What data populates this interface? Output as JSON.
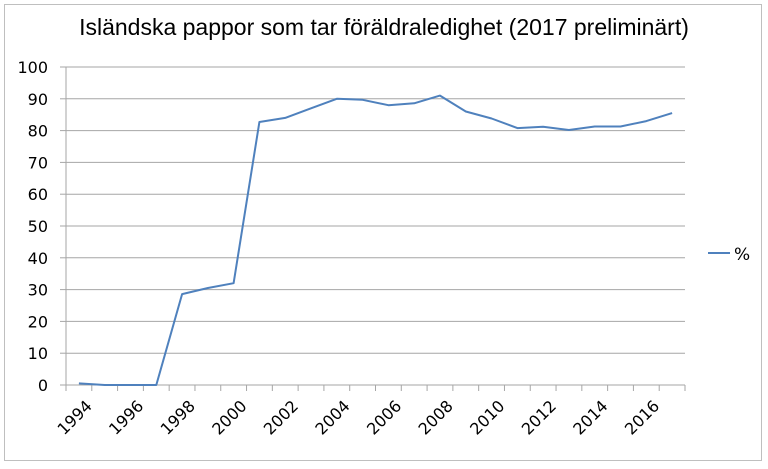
{
  "chart_data": {
    "type": "line",
    "title": "Isländska pappor som tar föräldraledighet (2017 preliminärt)",
    "xlabel": "",
    "ylabel": "",
    "ylim": [
      0,
      100
    ],
    "yticks": [
      0,
      10,
      20,
      30,
      40,
      50,
      60,
      70,
      80,
      90,
      100
    ],
    "grid": true,
    "legend_position": "right",
    "categories": [
      "1994",
      "1995",
      "1996",
      "1997",
      "1998",
      "1999",
      "2000",
      "2001",
      "2002",
      "2003",
      "2004",
      "2005",
      "2006",
      "2007",
      "2008",
      "2009",
      "2010",
      "2011",
      "2012",
      "2013",
      "2014",
      "2015",
      "2016",
      "2017"
    ],
    "xtick_labels": [
      "1994",
      "1996",
      "1998",
      "2000",
      "2002",
      "2004",
      "2006",
      "2008",
      "2010",
      "2012",
      "2014",
      "2016"
    ],
    "series": [
      {
        "name": "%",
        "color": "#4f81bd",
        "values": [
          0.5,
          0,
          0,
          0,
          28.6,
          30.5,
          32,
          82.7,
          84,
          87,
          90,
          89.7,
          88,
          88.6,
          91,
          86,
          83.8,
          80.8,
          81.2,
          80.2,
          81.3,
          81.3,
          83,
          85.5
        ]
      }
    ]
  },
  "legend": {
    "label": "%"
  }
}
